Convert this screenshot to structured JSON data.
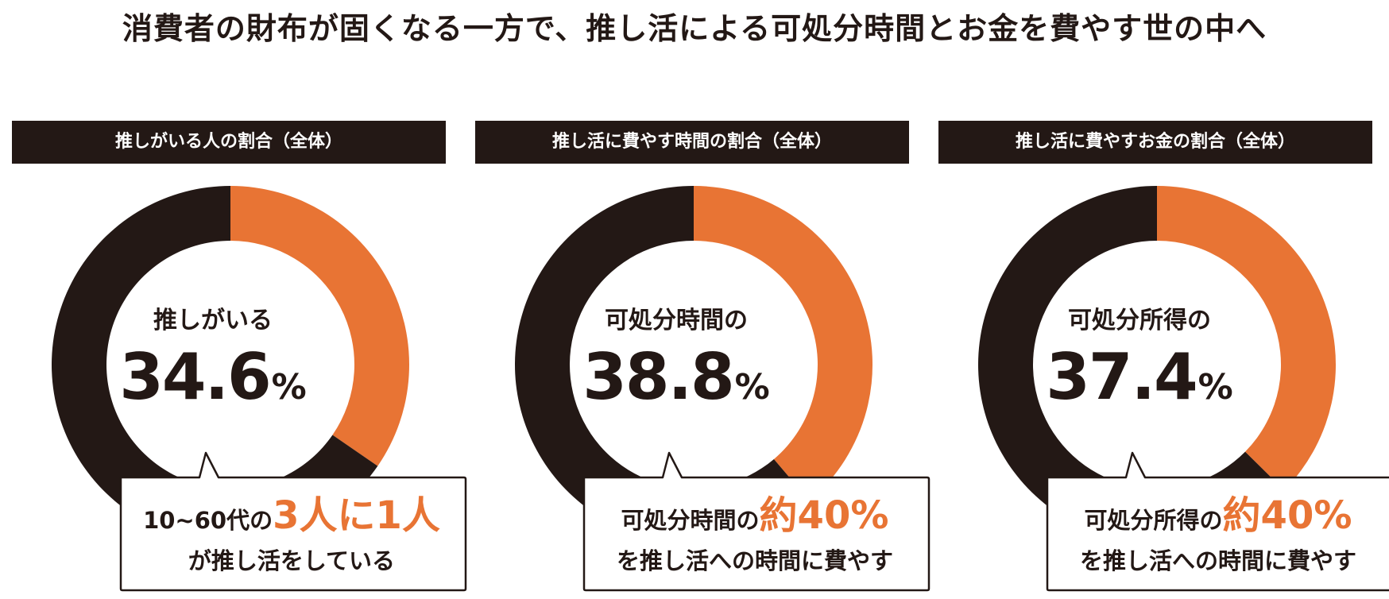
{
  "title": "消費者の財布が固くなる一方で、推し活による可処分時間とお金を費やす世の中へ",
  "colors": {
    "accent": "#E87434",
    "dark": "#231815",
    "background": "#FFFFFF"
  },
  "panels": [
    {
      "header": "推しがいる人の割合（全体）",
      "center_label": "推しがいる",
      "value_number": "34.6",
      "value_unit": "%",
      "callout_prefix": "10~60代の",
      "callout_highlight": "3人に1人",
      "callout_line2": "が推し活をしている"
    },
    {
      "header": "推し活に費やす時間の割合（全体）",
      "center_label": "可処分時間の",
      "value_number": "38.8",
      "value_unit": "%",
      "callout_prefix": "可処分時間の",
      "callout_highlight": "約40%",
      "callout_line2": "を推し活への時間に費やす"
    },
    {
      "header": "推し活に費やすお金の割合（全体）",
      "center_label": "可処分所得の",
      "value_number": "37.4",
      "value_unit": "%",
      "callout_prefix": "可処分所得の",
      "callout_highlight": "約40%",
      "callout_line2": "を推し活への時間に費やす"
    }
  ],
  "chart_data": [
    {
      "type": "pie",
      "title": "推しがいる人の割合（全体）",
      "values": [
        34.6,
        65.4
      ],
      "colors": [
        "#E87434",
        "#231815"
      ],
      "unit": "%"
    },
    {
      "type": "pie",
      "title": "推し活に費やす時間の割合（全体）",
      "values": [
        38.8,
        61.2
      ],
      "colors": [
        "#E87434",
        "#231815"
      ],
      "unit": "%"
    },
    {
      "type": "pie",
      "title": "推し活に費やすお金の割合（全体）",
      "values": [
        37.4,
        62.6
      ],
      "colors": [
        "#E87434",
        "#231815"
      ],
      "unit": "%"
    }
  ]
}
